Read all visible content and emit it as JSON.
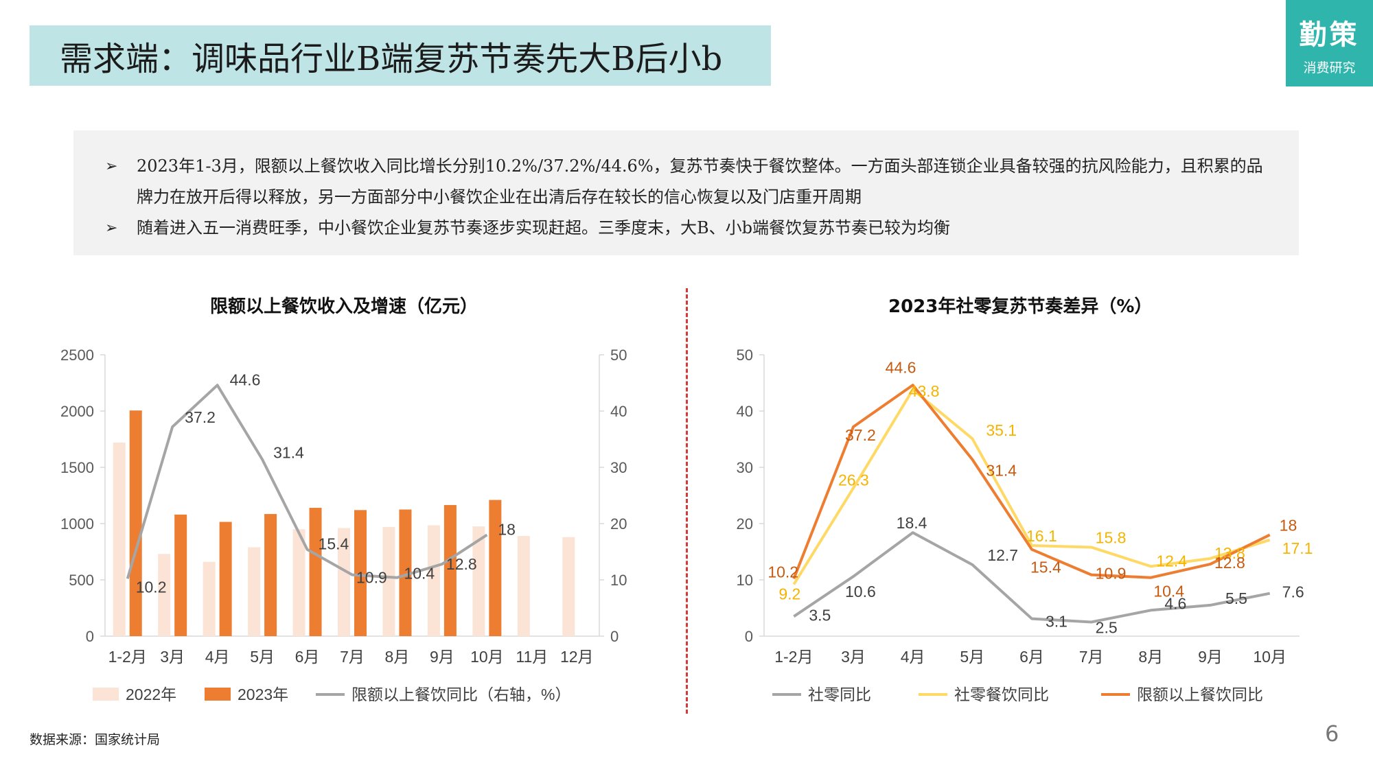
{
  "header": {
    "title": "需求端：调味品行业B端复苏节奏先大B后小b",
    "logo_main": "勤策",
    "logo_sub": "消费研究"
  },
  "bullets": [
    {
      "marker": "➢",
      "text": "2023年1-3月，限额以上餐饮收入同比增长分别10.2%/37.2%/44.6%，复苏节奏快于餐饮整体。一方面头部连锁企业具备较强的抗风险能力，且积累的品牌力在放开后得以释放，另一方面部分中小餐饮企业在出清后存在较长的信心恢复以及门店重开周期"
    },
    {
      "marker": "➢",
      "text": "随着进入五一消费旺季，中小餐饮企业复苏节奏逐步实现赶超。三季度末，大B、小b端餐饮复苏节奏已较为均衡"
    }
  ],
  "source": "数据来源：国家统计局",
  "page_number": "6",
  "colors": {
    "bar2022": "#fbe3d6",
    "bar2023": "#ed7d31",
    "line_gray": "#a5a5a5",
    "line_yellow": "#ffd966",
    "line_orange": "#ed7d31",
    "label_yellow": "#f4b400",
    "label_orange": "#c55a11",
    "label_dark": "#404040"
  },
  "chart_data": [
    {
      "type": "bar",
      "title": "限额以上餐饮收入及增速（亿元）",
      "categories": [
        "1-2月",
        "3月",
        "4月",
        "5月",
        "6月",
        "7月",
        "8月",
        "9月",
        "10月",
        "11月",
        "12月"
      ],
      "ylim": [
        0,
        2500
      ],
      "yticks": [
        "0",
        "500",
        "1000",
        "1500",
        "2000",
        "2500"
      ],
      "y2lim": [
        0,
        50
      ],
      "y2ticks": [
        "0",
        "10",
        "20",
        "30",
        "40",
        "50"
      ],
      "series": [
        {
          "name": "2022年",
          "kind": "bar",
          "axis": "left",
          "values": [
            1720,
            730,
            660,
            790,
            950,
            960,
            970,
            985,
            975,
            890,
            880
          ]
        },
        {
          "name": "2023年",
          "kind": "bar",
          "axis": "left",
          "values": [
            2005,
            1080,
            1015,
            1085,
            1140,
            1120,
            1125,
            1165,
            1210,
            null,
            null
          ]
        },
        {
          "name": "限额以上餐饮同比（右轴，%）",
          "kind": "line",
          "axis": "right",
          "values": [
            10.2,
            37.2,
            44.6,
            31.4,
            15.4,
            10.9,
            10.4,
            12.8,
            18,
            null,
            null
          ],
          "labels": [
            "10.2",
            "37.2",
            "44.6",
            "31.4",
            "15.4",
            "10.9",
            "10.4",
            "12.8",
            "18",
            "",
            ""
          ]
        }
      ],
      "legend": [
        "2022年",
        "2023年",
        "限额以上餐饮同比（右轴，%）"
      ]
    },
    {
      "type": "line",
      "title": "2023年社零复苏节奏差异（%）",
      "categories": [
        "1-2月",
        "3月",
        "4月",
        "5月",
        "6月",
        "7月",
        "8月",
        "9月",
        "10月"
      ],
      "ylim": [
        0,
        50
      ],
      "yticks": [
        "0",
        "10",
        "20",
        "30",
        "40",
        "50"
      ],
      "series": [
        {
          "name": "社零同比",
          "values": [
            3.5,
            10.6,
            18.4,
            12.7,
            3.1,
            2.5,
            4.6,
            5.5,
            7.6
          ],
          "labels": [
            "3.5",
            "10.6",
            "18.4",
            "12.7",
            "3.1",
            "2.5",
            "4.6",
            "5.5",
            "7.6"
          ]
        },
        {
          "name": "社零餐饮同比",
          "values": [
            9.2,
            26.3,
            43.8,
            35.1,
            16.1,
            15.8,
            12.4,
            13.8,
            17.1
          ],
          "labels": [
            "9.2",
            "26.3",
            "43.8",
            "35.1",
            "16.1",
            "15.8",
            "12.4",
            "13.8",
            "17.1"
          ]
        },
        {
          "name": "限额以上餐饮同比",
          "values": [
            10.2,
            37.2,
            44.6,
            31.4,
            15.4,
            10.9,
            10.4,
            12.8,
            18
          ],
          "labels": [
            "10.2",
            "37.2",
            "44.6",
            "31.4",
            "15.4",
            "10.9",
            "10.4",
            "12.8",
            "18"
          ]
        }
      ],
      "legend": [
        "社零同比",
        "社零餐饮同比",
        "限额以上餐饮同比"
      ]
    }
  ]
}
